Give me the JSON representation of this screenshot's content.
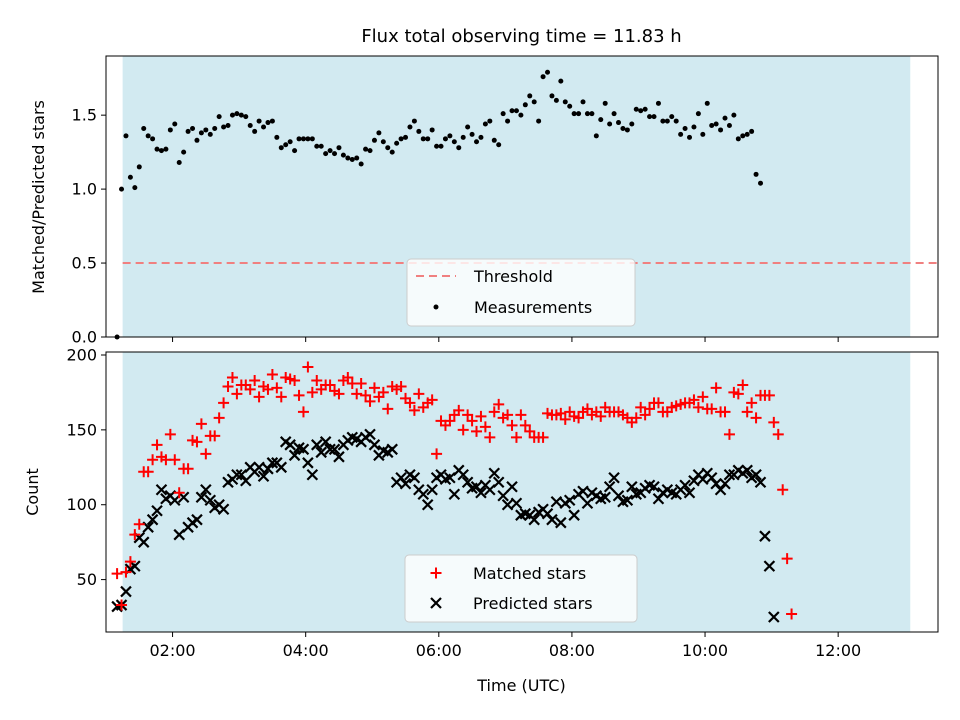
{
  "title": "Flux total observing time = 11.83 h",
  "colors": {
    "shade": "#add8e6",
    "threshold": "#f08080",
    "measurement": "#000000",
    "matched": "#ff0000",
    "predicted": "#000000"
  },
  "chart_data": [
    {
      "type": "scatter",
      "panel": "top",
      "ylabel": "Matched/Predicted stars",
      "xlim": [
        "01:00",
        "13:30"
      ],
      "ylim": [
        0,
        1.9
      ],
      "yticks": [
        "0.0",
        "0.5",
        "1.0",
        "1.5"
      ],
      "grid": false,
      "legend_position": "lower center",
      "shaded_span": [
        "01:15",
        "13:05"
      ],
      "threshold": {
        "name": "Threshold",
        "value": 0.5,
        "style": "dashed"
      },
      "series": [
        {
          "name": "Measurements",
          "x_start": "01:10",
          "x_step_minutes": 4,
          "values": [
            0,
            1,
            1.36,
            1.08,
            1.01,
            1.15,
            1.41,
            1.36,
            1.34,
            1.27,
            1.26,
            1.27,
            1.4,
            1.44,
            1.18,
            1.25,
            1.39,
            1.41,
            1.33,
            1.38,
            1.4,
            1.37,
            1.41,
            1.49,
            1.42,
            1.43,
            1.5,
            1.51,
            1.5,
            1.49,
            1.43,
            1.39,
            1.46,
            1.42,
            1.45,
            1.46,
            1.35,
            1.28,
            1.3,
            1.32,
            1.26,
            1.34,
            1.34,
            1.34,
            1.34,
            1.29,
            1.29,
            1.24,
            1.26,
            1.24,
            1.28,
            1.23,
            1.21,
            1.2,
            1.21,
            1.17,
            1.27,
            1.26,
            1.33,
            1.38,
            1.32,
            1.28,
            1.25,
            1.31,
            1.34,
            1.35,
            1.42,
            1.46,
            1.39,
            1.34,
            1.34,
            1.4,
            1.29,
            1.29,
            1.34,
            1.36,
            1.32,
            1.28,
            1.35,
            1.42,
            1.37,
            1.32,
            1.35,
            1.44,
            1.46,
            1.33,
            1.3,
            1.51,
            1.46,
            1.53,
            1.53,
            1.5,
            1.57,
            1.63,
            1.59,
            1.46,
            1.76,
            1.79,
            1.63,
            1.6,
            1.73,
            1.59,
            1.56,
            1.51,
            1.51,
            1.59,
            1.51,
            1.51,
            1.36,
            1.47,
            1.58,
            1.44,
            1.51,
            1.45,
            1.41,
            1.4,
            1.44,
            1.54,
            1.53,
            1.54,
            1.49,
            1.49,
            1.58,
            1.46,
            1.46,
            1.49,
            1.46,
            1.37,
            1.41,
            1.35,
            1.42,
            1.51,
            1.37,
            1.58,
            1.43,
            1.44,
            1.4,
            1.48,
            1.43,
            1.5,
            1.34,
            1.36,
            1.37,
            1.39,
            1.1,
            1.04
          ]
        }
      ]
    },
    {
      "type": "scatter",
      "panel": "bottom",
      "xlabel": "Time (UTC)",
      "ylabel": "Count",
      "xlim": [
        "01:00",
        "13:30"
      ],
      "ylim": [
        15,
        202
      ],
      "yticks": [
        "50",
        "100",
        "150",
        "200"
      ],
      "xticks": [
        "02:00",
        "04:00",
        "06:00",
        "08:00",
        "10:00",
        "12:00"
      ],
      "grid": false,
      "legend_position": "lower center",
      "shaded_span": [
        "01:15",
        "13:05"
      ],
      "series": [
        {
          "name": "Matched stars",
          "marker": "+",
          "x_start": "01:10",
          "x_step_minutes": 4,
          "values": [
            54,
            33,
            55,
            62,
            80,
            87,
            122,
            122,
            130,
            140,
            132,
            130,
            147,
            130,
            108,
            124,
            124,
            143,
            142,
            154,
            134,
            146,
            146,
            158,
            168,
            179,
            185,
            174,
            180,
            180,
            177,
            183,
            172,
            179,
            177,
            187,
            178,
            172,
            185,
            184,
            183,
            173,
            162,
            192,
            175,
            183,
            177,
            180,
            180,
            176,
            174,
            183,
            185,
            181,
            174,
            181,
            173,
            169,
            178,
            172,
            175,
            164,
            179,
            177,
            179,
            171,
            168,
            163,
            174,
            165,
            168,
            170,
            134,
            156,
            153,
            156,
            160,
            163,
            150,
            160,
            156,
            149,
            159,
            152,
            145,
            162,
            167,
            158,
            160,
            153,
            145,
            160,
            153,
            149,
            145,
            145,
            145,
            161,
            160,
            160,
            161,
            157,
            162,
            159,
            158,
            162,
            164,
            160,
            162,
            159,
            165,
            162,
            162,
            162,
            160,
            158,
            155,
            158,
            165,
            160,
            164,
            168,
            168,
            162,
            162,
            165,
            166,
            167,
            168,
            168,
            170,
            165,
            172,
            164,
            164,
            178,
            162,
            162,
            147,
            175,
            174,
            180,
            162,
            168,
            158,
            173,
            173,
            173,
            155,
            147,
            110,
            64,
            27
          ]
        },
        {
          "name": "Predicted stars",
          "marker": "x",
          "x_start": "01:10",
          "x_step_minutes": 4,
          "values": [
            32,
            33,
            42,
            57,
            59,
            78,
            75,
            85,
            90,
            96,
            110,
            104,
            106,
            103,
            80,
            105,
            85,
            88,
            90,
            105,
            110,
            103,
            98,
            100,
            97,
            115,
            117,
            120,
            120,
            116,
            125,
            122,
            125,
            119,
            124,
            128,
            128,
            125,
            142,
            140,
            133,
            138,
            137,
            128,
            120,
            140,
            135,
            142,
            137,
            137,
            132,
            140,
            143,
            145,
            144,
            142,
            145,
            147,
            140,
            133,
            136,
            135,
            137,
            115,
            118,
            114,
            120,
            118,
            110,
            107,
            100,
            110,
            118,
            120,
            117,
            118,
            107,
            123,
            120,
            115,
            111,
            112,
            108,
            113,
            110,
            121,
            115,
            106,
            100,
            112,
            101,
            93,
            94,
            93,
            90,
            95,
            97,
            94,
            90,
            102,
            88,
            101,
            103,
            93,
            107,
            109,
            101,
            108,
            106,
            104,
            105,
            112,
            118,
            106,
            102,
            103,
            112,
            107,
            108,
            111,
            113,
            112,
            104,
            108,
            110,
            108,
            107,
            110,
            113,
            108,
            116,
            120,
            117,
            121,
            118,
            114,
            110,
            114,
            120,
            120,
            123,
            121,
            123,
            118,
            120,
            115,
            79,
            59,
            25
          ]
        }
      ]
    }
  ]
}
